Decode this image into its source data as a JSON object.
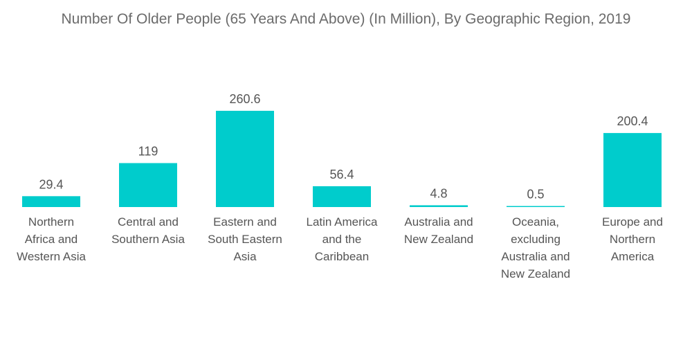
{
  "chart_data": {
    "type": "bar",
    "title": "Number Of Older People (65 Years And Above) (In Million), By Geographic Region, 2019",
    "xlabel": "",
    "ylabel": "",
    "ylim": [
      0,
      260.6
    ],
    "grid": false,
    "legend": "none",
    "bar_color": "#00CCCC",
    "categories": [
      [
        "Northern",
        "Africa and",
        "Western Asia"
      ],
      [
        "Central and",
        "Southern Asia"
      ],
      [
        "Eastern and",
        "South Eastern",
        "Asia"
      ],
      [
        "Latin America",
        "and the",
        "Caribbean"
      ],
      [
        "Australia and",
        "New Zealand"
      ],
      [
        "Oceania,",
        "excluding",
        "Australia and",
        "New Zealand"
      ],
      [
        "Europe and",
        "Northern",
        "America"
      ]
    ],
    "values": [
      29.4,
      119,
      260.6,
      56.4,
      4.8,
      0.5,
      200.4
    ],
    "value_labels": [
      "29.4",
      "119",
      "260.6",
      "56.4",
      "4.8",
      "0.5",
      "200.4"
    ]
  }
}
